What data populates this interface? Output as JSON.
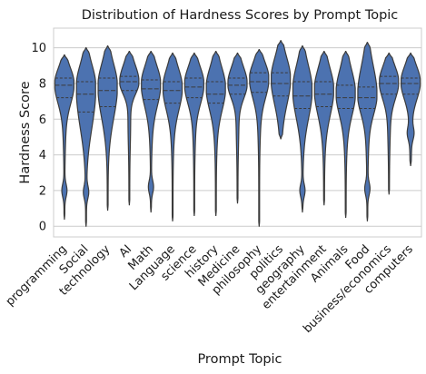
{
  "chart_data": {
    "type": "violin",
    "title": "Distribution of Hardness Scores by Prompt Topic",
    "xlabel": "Prompt Topic",
    "ylabel": "Hardness Score",
    "ylim": [
      -0.6,
      11.1
    ],
    "yticks": [
      0,
      2,
      4,
      6,
      8,
      10
    ],
    "grid": "horizontal",
    "color": "#4c72b0",
    "inner": "quartile",
    "categories": [
      "programming",
      "Social",
      "technology",
      "AI",
      "Math",
      "Language",
      "science",
      "history",
      "Medicine",
      "philosophy",
      "politics",
      "geography",
      "entertainment",
      "Animals",
      "Food",
      "business/economics",
      "computers"
    ],
    "distributions": [
      {
        "min": 0.4,
        "max": 9.6,
        "q1": 7.2,
        "median": 7.9,
        "q3": 8.3,
        "mode": 8.0,
        "bump": 2.0
      },
      {
        "min": 0.0,
        "max": 10.0,
        "q1": 6.4,
        "median": 7.4,
        "q3": 8.1,
        "mode": 7.9,
        "bump": 1.9
      },
      {
        "min": 0.9,
        "max": 10.1,
        "q1": 6.7,
        "median": 7.6,
        "q3": 8.3,
        "mode": 7.9,
        "bump": null
      },
      {
        "min": 1.2,
        "max": 9.8,
        "q1": 7.6,
        "median": 8.1,
        "q3": 8.4,
        "mode": 8.1,
        "bump": null
      },
      {
        "min": 0.8,
        "max": 9.8,
        "q1": 7.1,
        "median": 7.7,
        "q3": 8.2,
        "mode": 8.0,
        "bump": 2.2
      },
      {
        "min": 0.3,
        "max": 9.7,
        "q1": 6.9,
        "median": 7.6,
        "q3": 8.1,
        "mode": 7.8,
        "bump": null
      },
      {
        "min": 0.6,
        "max": 9.7,
        "q1": 7.2,
        "median": 7.8,
        "q3": 8.3,
        "mode": 8.0,
        "bump": null
      },
      {
        "min": 0.6,
        "max": 9.8,
        "q1": 6.9,
        "median": 7.4,
        "q3": 8.1,
        "mode": 7.8,
        "bump": null
      },
      {
        "min": 1.3,
        "max": 9.7,
        "q1": 7.4,
        "median": 7.9,
        "q3": 8.3,
        "mode": 8.0,
        "bump": null
      },
      {
        "min": 0.0,
        "max": 9.9,
        "q1": 7.5,
        "median": 8.1,
        "q3": 8.6,
        "mode": 8.3,
        "bump": null
      },
      {
        "min": 4.9,
        "max": 10.4,
        "q1": 7.3,
        "median": 8.0,
        "q3": 8.6,
        "mode": 8.3,
        "bump": null
      },
      {
        "min": 0.8,
        "max": 10.1,
        "q1": 6.6,
        "median": 7.3,
        "q3": 8.1,
        "mode": 7.7,
        "bump": 2.0
      },
      {
        "min": 1.2,
        "max": 9.8,
        "q1": 6.7,
        "median": 7.4,
        "q3": 8.1,
        "mode": 7.7,
        "bump": null
      },
      {
        "min": 0.5,
        "max": 9.8,
        "q1": 6.6,
        "median": 7.2,
        "q3": 7.9,
        "mode": 7.5,
        "bump": null
      },
      {
        "min": 0.3,
        "max": 10.3,
        "q1": 6.6,
        "median": 7.2,
        "q3": 7.8,
        "mode": 7.4,
        "bump": 2.1
      },
      {
        "min": 1.8,
        "max": 9.7,
        "q1": 7.4,
        "median": 8.0,
        "q3": 8.4,
        "mode": 8.1,
        "bump": null
      },
      {
        "min": 3.4,
        "max": 9.7,
        "q1": 7.4,
        "median": 8.0,
        "q3": 8.3,
        "mode": 8.1,
        "bump": 5.2
      }
    ]
  }
}
